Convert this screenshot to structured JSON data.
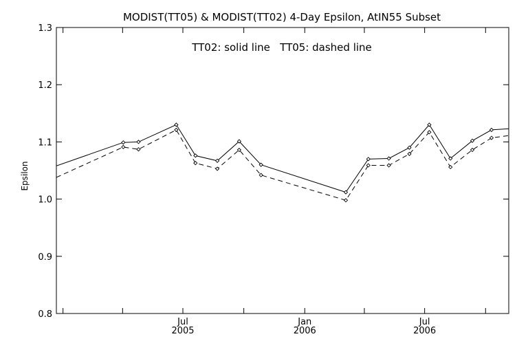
{
  "chart_data": {
    "type": "line",
    "title": "MODIST(TT05) & MODIST(TT02) 4-Day Epsilon, AtIN55 Subset",
    "annotation": "TT02: solid line   TT05: dashed line",
    "ylabel": "Epsilon",
    "xlabel": "",
    "ylim": [
      0.8,
      1.3
    ],
    "y_ticks": [
      0.8,
      0.9,
      1.0,
      1.1,
      1.2,
      1.3
    ],
    "y_tick_labels": [
      "0.8",
      "0.9",
      "1.0",
      "1.1",
      "1.2",
      "1.3"
    ],
    "xlim": [
      "2004-12-22",
      "2006-11-05"
    ],
    "x_ticks": [
      "2005-01-01",
      "2005-04-01",
      "2005-07-01",
      "2005-10-01",
      "2006-01-01",
      "2006-04-01",
      "2006-07-01",
      "2006-10-01"
    ],
    "x_tick_labels": [
      {
        "date": "2005-07-01",
        "month": "Jul",
        "year": "2005"
      },
      {
        "date": "2006-01-01",
        "month": "Jan",
        "year": "2006"
      },
      {
        "date": "2006-07-01",
        "month": "Jul",
        "year": "2006"
      }
    ],
    "x": [
      "2004-12-22",
      "2005-04-02",
      "2005-04-25",
      "2005-06-21",
      "2005-07-20",
      "2005-08-22",
      "2005-09-24",
      "2005-10-27",
      "2006-03-04",
      "2006-04-07",
      "2006-05-08",
      "2006-06-08",
      "2006-07-08",
      "2006-08-09",
      "2006-09-11",
      "2006-10-10",
      "2006-11-05"
    ],
    "series": [
      {
        "name": "TT02",
        "style": "solid",
        "values": [
          1.058,
          1.099,
          1.1,
          1.13,
          1.076,
          1.067,
          1.101,
          1.06,
          1.012,
          1.07,
          1.071,
          1.09,
          1.13,
          1.071,
          1.102,
          1.121,
          1.123
        ]
      },
      {
        "name": "TT05",
        "style": "dashed",
        "values": [
          1.038,
          1.091,
          1.087,
          1.121,
          1.063,
          1.053,
          1.086,
          1.042,
          0.998,
          1.059,
          1.059,
          1.079,
          1.117,
          1.056,
          1.086,
          1.107,
          1.111
        ]
      }
    ],
    "grid": false,
    "colors": {
      "line": "#000000",
      "background": "#ffffff"
    }
  }
}
